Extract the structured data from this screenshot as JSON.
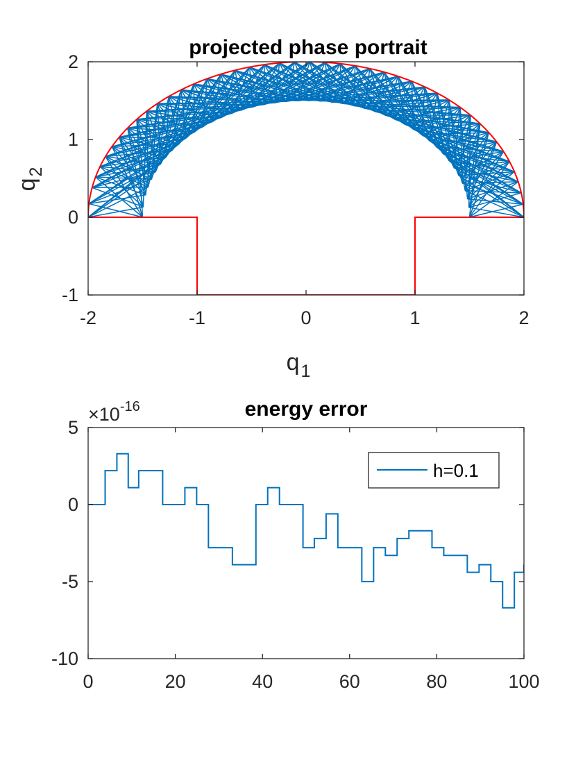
{
  "figure": {
    "colors": {
      "trajectory": "#0072BD",
      "boundary": "#FF0000",
      "axis": "#262626"
    }
  },
  "chart_data": [
    {
      "type": "line",
      "title": "projected phase portrait",
      "xlabel": "q",
      "xlabel_sub": "1",
      "ylabel": "q",
      "ylabel_sub": "2",
      "xlim": [
        -2,
        2
      ],
      "ylim": [
        -1,
        2
      ],
      "xticks": [
        -2,
        -1,
        0,
        1,
        2
      ],
      "xtick_labels": [
        "-2",
        "-1",
        "0",
        "1",
        "2"
      ],
      "yticks": [
        -1,
        0,
        1,
        2
      ],
      "ytick_labels": [
        "-1",
        "0",
        "1",
        "2"
      ],
      "grid": false,
      "boundary": {
        "arc_radius": 2,
        "step_polyline": [
          [
            -2,
            0
          ],
          [
            -1,
            0
          ],
          [
            -1,
            -1
          ],
          [
            1,
            -1
          ],
          [
            1,
            0
          ],
          [
            2,
            0
          ]
        ]
      },
      "trajectory": {
        "inner_radius": 1.5,
        "outer_radius": 2,
        "bounce_angles_deg": [
          0.0,
          4.8,
          9.0,
          13.2,
          17.0,
          21.0,
          25.0,
          29.0,
          33.0,
          37.0,
          41.0,
          45.0,
          49.0,
          53.0,
          57.0,
          61.0,
          65.0,
          69.0,
          73.0,
          77.0,
          81.0,
          85.0,
          89.0,
          93.0,
          97.0,
          101.0,
          105.0,
          109.0,
          113.0,
          117.0,
          121.0,
          125.0,
          129.0,
          133.0,
          137.0,
          141.0,
          145.0,
          149.0,
          153.0,
          157.0,
          161.0,
          165.0,
          169.0,
          175.0,
          180.0
        ]
      }
    },
    {
      "type": "line",
      "title": "energy error",
      "multiplier_base": "×10",
      "multiplier_exp": "-16",
      "xlabel": "",
      "ylabel": "",
      "xlim": [
        0,
        100
      ],
      "ylim": [
        -10,
        5
      ],
      "xticks": [
        0,
        20,
        40,
        60,
        80,
        100
      ],
      "xtick_labels": [
        "0",
        "20",
        "40",
        "60",
        "80",
        "100"
      ],
      "yticks": [
        -10,
        -5,
        0,
        5
      ],
      "ytick_labels": [
        "-10",
        "-5",
        "0",
        "5"
      ],
      "grid": false,
      "legend_position": "top-right",
      "series": [
        {
          "name": "h=0.1",
          "step": true,
          "x": [
            0,
            3.9,
            6.6,
            9.2,
            11.6,
            17.1,
            22.2,
            24.9,
            27.6,
            33.1,
            38.5,
            41.2,
            43.9,
            49.3,
            51.9,
            54.6,
            57.3,
            62.8,
            65.5,
            68.2,
            70.9,
            73.6,
            76.3,
            78.9,
            81.6,
            84.3,
            87.0,
            89.7,
            92.4,
            95.1,
            97.8,
            100.0
          ],
          "y": [
            0,
            2.2,
            3.3,
            1.1,
            2.2,
            0,
            1.1,
            0,
            -2.8,
            -3.9,
            0,
            1.1,
            0,
            -2.8,
            -2.2,
            -0.6,
            -2.8,
            -5.0,
            -2.8,
            -3.3,
            -2.2,
            -1.7,
            -1.7,
            -2.8,
            -3.3,
            -3.3,
            -4.4,
            -3.9,
            -5.0,
            -6.7,
            -4.4,
            -3.9
          ]
        }
      ]
    }
  ]
}
